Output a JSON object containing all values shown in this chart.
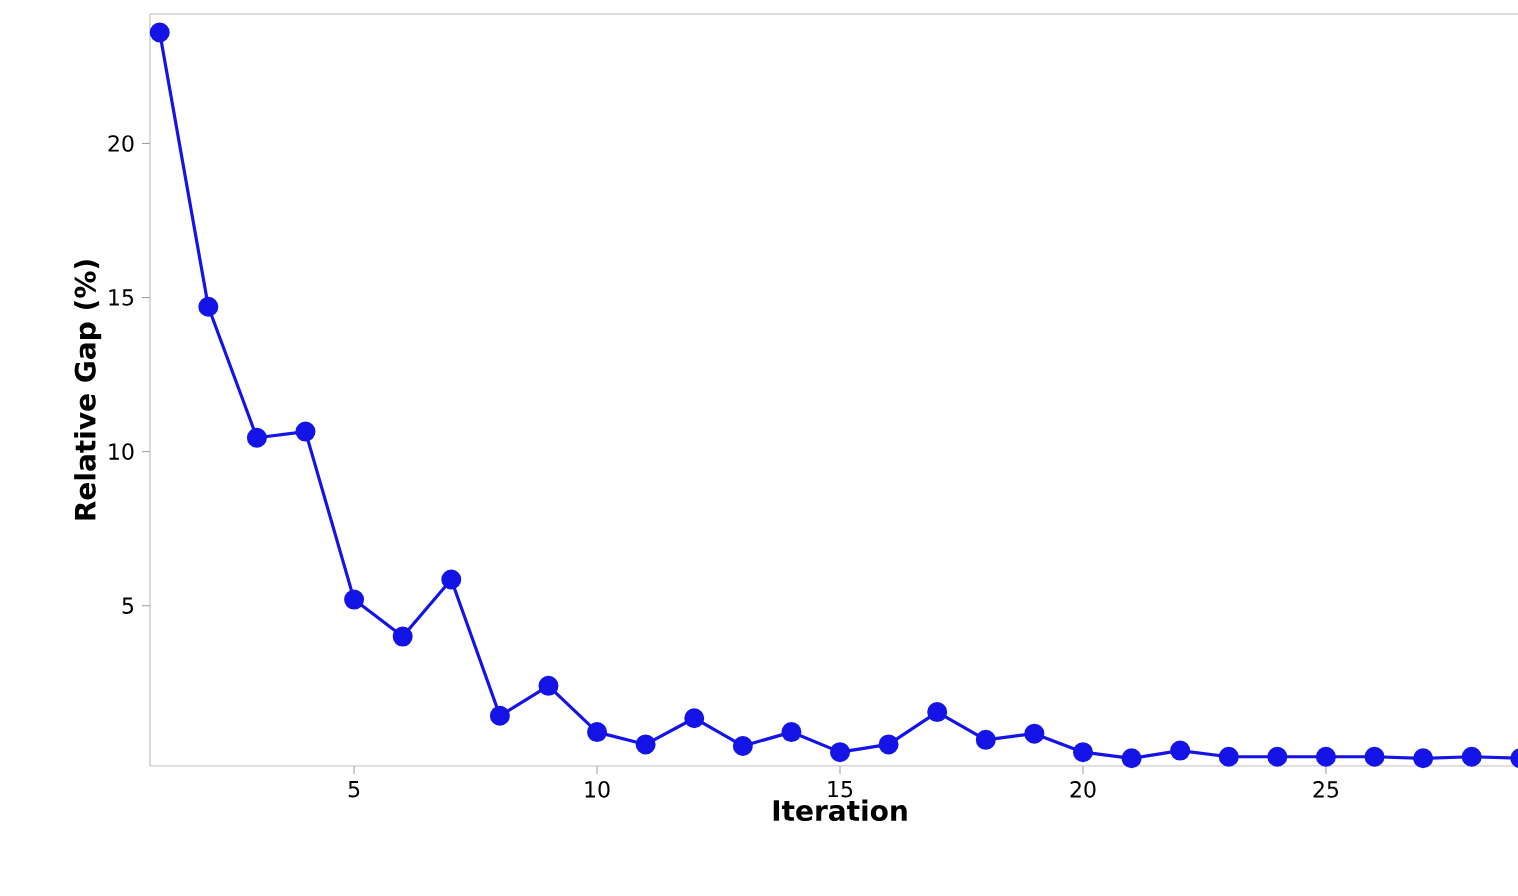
{
  "chart_data": {
    "type": "line",
    "xlabel": "Iteration",
    "ylabel": "Relative Gap (%)",
    "x": [
      1,
      2,
      3,
      4,
      5,
      6,
      7,
      8,
      9,
      10,
      11,
      12,
      13,
      14,
      15,
      16,
      17,
      18,
      19,
      20,
      21,
      22,
      23,
      24,
      25,
      26,
      27,
      28,
      29
    ],
    "series": [
      {
        "color": "#1414e6",
        "values": [
          23.6,
          14.7,
          10.45,
          10.65,
          5.2,
          4.0,
          5.85,
          1.43,
          2.4,
          0.9,
          0.5,
          1.35,
          0.45,
          0.9,
          0.25,
          0.5,
          1.55,
          0.65,
          0.85,
          0.25,
          0.05,
          0.3,
          0.1,
          0.1,
          0.1,
          0.1,
          0.05,
          0.1,
          0.05
        ]
      }
    ],
    "xlim": [
      0.8,
      29.2
    ],
    "ylim": [
      -0.2,
      24.2
    ],
    "xticks": [
      5,
      10,
      15,
      20,
      25
    ],
    "yticks": [
      5,
      10,
      15,
      20
    ],
    "marker": "circle",
    "line_style": "solid"
  }
}
